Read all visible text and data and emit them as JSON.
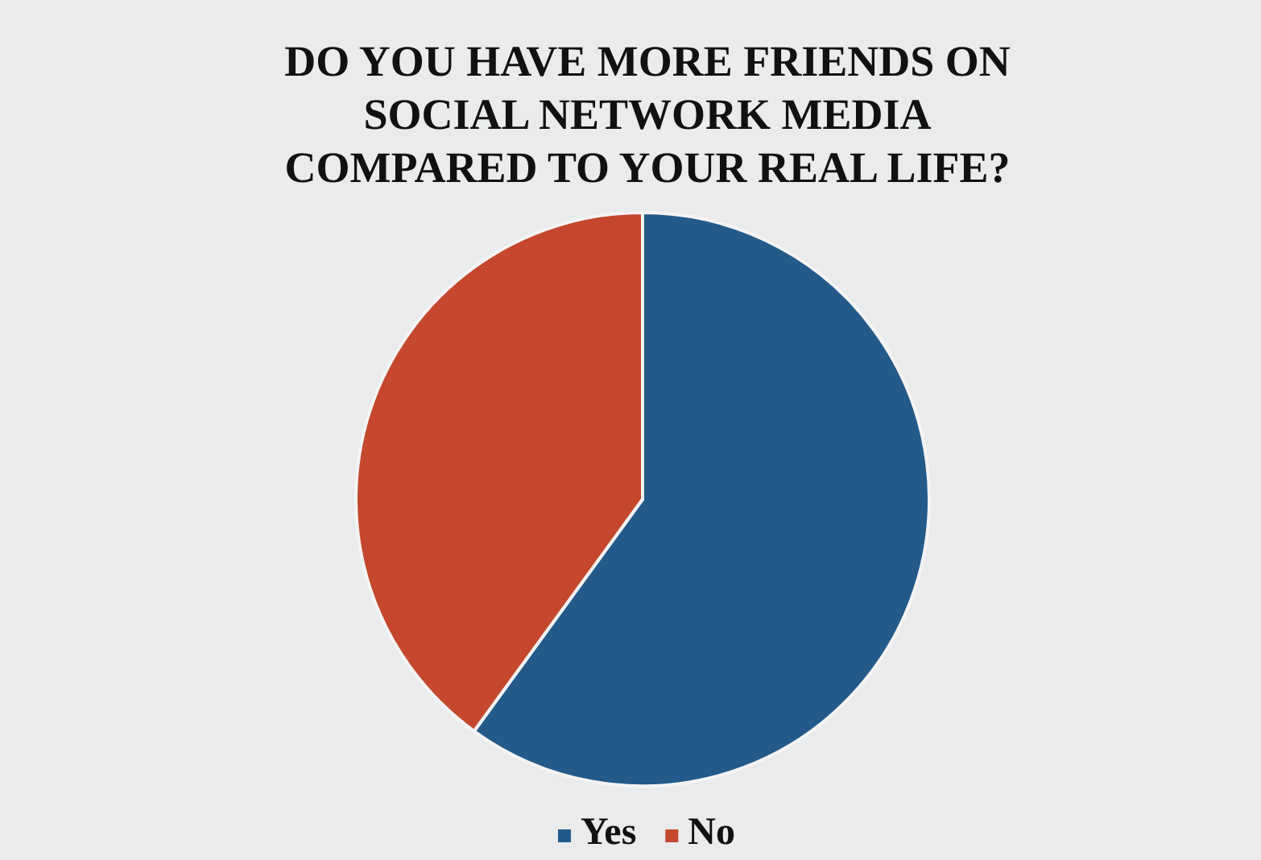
{
  "chart_data": {
    "type": "pie",
    "title": "DO YOU HAVE MORE FRIENDS ON SOCIAL NETWORK MEDIA COMPARED TO YOUR REAL LIFE?",
    "categories": [
      "Yes",
      "No"
    ],
    "values": [
      60,
      40
    ],
    "colors": [
      "#245a8a",
      "#c4472e"
    ],
    "legend": "bottom"
  }
}
